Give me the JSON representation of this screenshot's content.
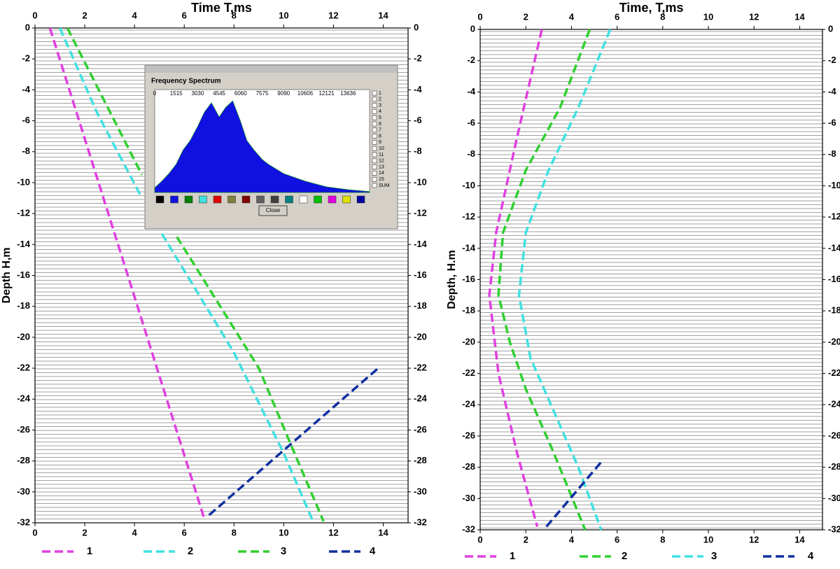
{
  "chart_data": [
    {
      "type": "line",
      "x_label": "Time T,ms",
      "y_label": "Depth H,m",
      "xlim": [
        0,
        15
      ],
      "ylim": [
        -32,
        0
      ],
      "xticks": [
        0,
        2,
        4,
        6,
        8,
        10,
        12,
        14
      ],
      "yticks": [
        0,
        -2,
        -4,
        -6,
        -8,
        -10,
        -12,
        -14,
        -16,
        -18,
        -20,
        -22,
        -24,
        -26,
        -28,
        -30,
        -32
      ],
      "series": [
        {
          "name": "1",
          "color": "#e040e0",
          "x": [
            0.6,
            6.8
          ],
          "values": [
            0,
            -31.7
          ]
        },
        {
          "name": "2",
          "color": "#40e0e0",
          "x": [
            1.0,
            2.5,
            4.3,
            4.6,
            5.1,
            8.0,
            10.0,
            11.2
          ],
          "values": [
            0,
            -5.5,
            -11,
            null,
            -13.3,
            -21,
            -27.5,
            -32
          ]
        },
        {
          "name": "3",
          "color": "#30d030",
          "x": [
            1.3,
            4.3,
            4.6,
            5.7,
            9.0,
            10.3,
            11.6
          ],
          "values": [
            0,
            -9.5,
            null,
            -13.5,
            -22,
            -27,
            -31.9
          ]
        },
        {
          "name": "4",
          "color": "#1030a0",
          "x": [
            7.0,
            13.8
          ],
          "values": [
            -31.5,
            -22
          ]
        }
      ],
      "inset": {
        "title": "Frequency Spectrum",
        "xlim": [
          0,
          15150
        ],
        "xticks": [
          0,
          1515,
          3030,
          4545,
          6060,
          7575,
          9090,
          10606,
          12121,
          13636
        ],
        "ylim": [
          0,
          100
        ],
        "x": [
          0,
          500,
          1000,
          1515,
          2000,
          2500,
          3030,
          3500,
          4000,
          4545,
          5000,
          5500,
          6060,
          6500,
          7000,
          7575,
          8000,
          9090,
          10606,
          12121,
          13636,
          15150
        ],
        "values": [
          5,
          12,
          20,
          30,
          45,
          55,
          70,
          85,
          95,
          80,
          90,
          97,
          75,
          55,
          45,
          35,
          30,
          20,
          12,
          6,
          3,
          1
        ],
        "checkboxes": [
          "1",
          "2",
          "3",
          "4",
          "5",
          "6",
          "7",
          "8",
          "9",
          "10",
          "11",
          "12",
          "13",
          "14",
          "15",
          "SUM"
        ],
        "button": "Close"
      }
    },
    {
      "type": "line",
      "x_label": "Time, T,ms",
      "y_label": "Depth, H.m",
      "xlim": [
        0,
        15
      ],
      "ylim": [
        -32,
        0
      ],
      "xticks": [
        0,
        2,
        4,
        6,
        8,
        10,
        12,
        14
      ],
      "yticks": [
        0,
        -2,
        -4,
        -6,
        -8,
        -10,
        -12,
        -14,
        -16,
        -18,
        -20,
        -22,
        -24,
        -26,
        -28,
        -30,
        -32
      ],
      "series": [
        {
          "name": "1",
          "color": "#e040e0",
          "x": [
            2.7,
            1.6,
            0.7,
            0.4,
            0.8,
            1.6,
            2.5
          ],
          "values": [
            0,
            -7,
            -13,
            -17,
            -22,
            -27,
            -31.8
          ]
        },
        {
          "name": "2",
          "color": "#30d030",
          "x": [
            4.8,
            3.5,
            2.0,
            1.0,
            0.8,
            1.3,
            2.0,
            3.2,
            4.6
          ],
          "values": [
            0,
            -5,
            -9,
            -13,
            -17,
            -20,
            -23,
            -27,
            -32
          ]
        },
        {
          "name": "3",
          "color": "#40e0e0",
          "x": [
            5.7,
            4.3,
            3.0,
            2.0,
            1.7,
            2.2,
            3.1,
            4.3,
            5.3
          ],
          "values": [
            0,
            -5,
            -9,
            -13,
            -17,
            -21,
            -24,
            -28,
            -32
          ]
        },
        {
          "name": "4",
          "color": "#1030a0",
          "x": [
            2.9,
            5.4
          ],
          "values": [
            -31.8,
            -27.5
          ]
        }
      ]
    }
  ]
}
